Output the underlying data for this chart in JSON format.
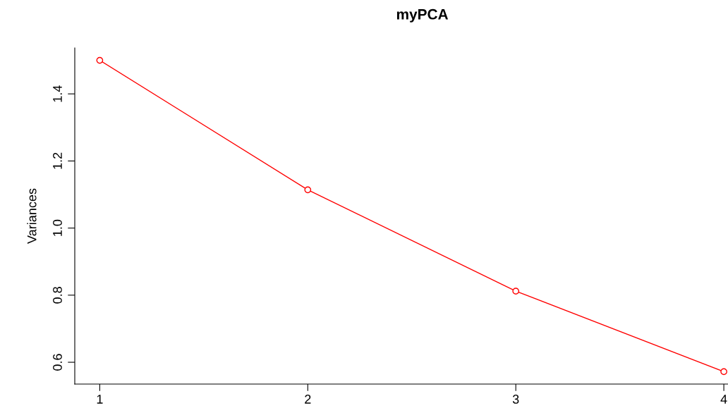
{
  "chart_data": {
    "type": "line",
    "title": "myPCA",
    "ylabel": "Variances",
    "x": [
      1,
      2,
      3,
      4
    ],
    "series": [
      {
        "color": "#ff0000",
        "values": [
          1.5,
          1.114,
          0.812,
          0.572
        ]
      }
    ],
    "xlim": [
      0.88,
      4.02
    ],
    "ylim": [
      0.535,
      1.537
    ],
    "xticks": [
      1,
      2,
      3,
      4
    ],
    "yticks": [
      0.6,
      0.8,
      {
        "value": 1.0,
        "label": "1.0"
      },
      1.2,
      1.4
    ],
    "marker": "circle",
    "line_style": "solid",
    "grid": false,
    "legend": false
  }
}
